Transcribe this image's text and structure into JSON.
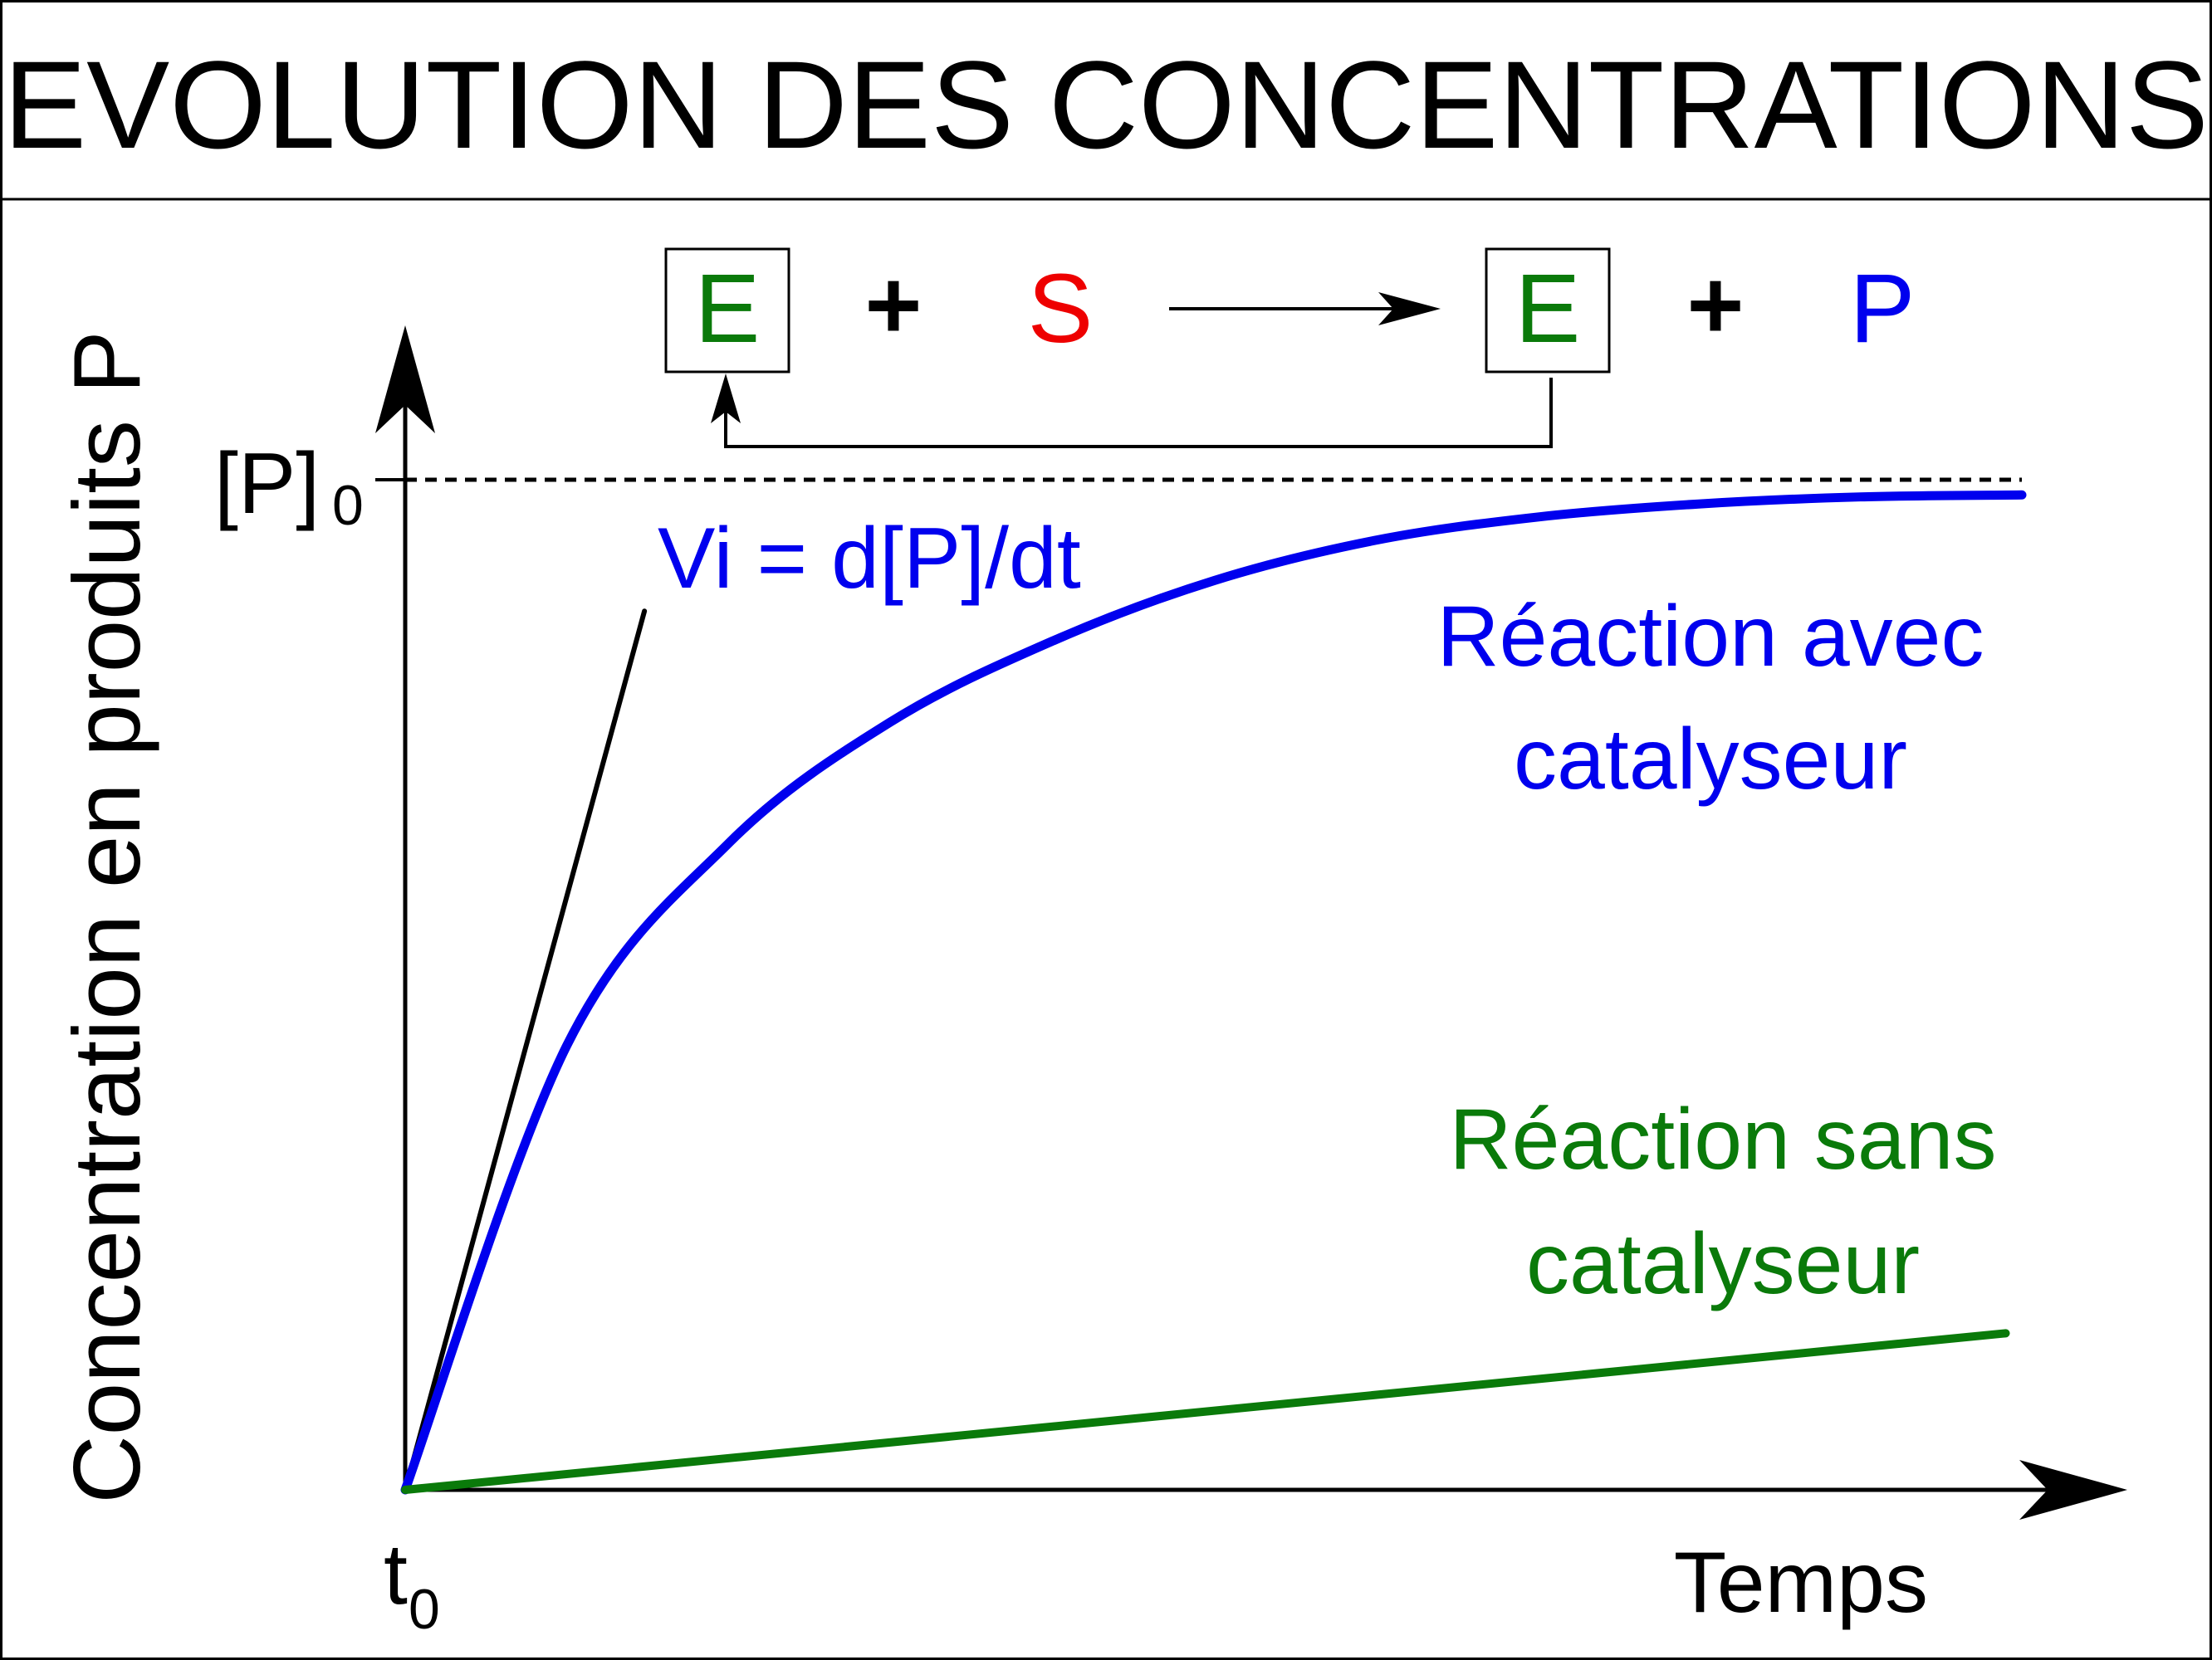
{
  "chart_data": {
    "type": "line",
    "title": "EVOLUTION DES CONCENTRATIONS",
    "xlabel": "Temps",
    "ylabel": "Concentration en produits P",
    "x_tick": {
      "main": "t",
      "sub": "0"
    },
    "y_tick": {
      "main": "[P]",
      "sub": "0"
    },
    "reaction": {
      "enzyme": "E",
      "plus": "+",
      "substrate": "S",
      "product": "P"
    },
    "tangent_label": "Vi = d[P]/dt",
    "series": [
      {
        "name_lines": [
          "Réaction avec",
          "catalyseur"
        ],
        "color": "#0000ee",
        "shape": "saturating",
        "x": [
          0,
          0.1,
          0.2,
          0.3,
          0.4,
          0.5,
          0.6,
          0.7,
          0.8,
          0.9,
          1.0
        ],
        "values": [
          0,
          0.44,
          0.64,
          0.76,
          0.84,
          0.9,
          0.94,
          0.963,
          0.976,
          0.983,
          0.985
        ]
      },
      {
        "name_lines": [
          "Réaction sans",
          "catalyseur"
        ],
        "color": "#0a7a0a",
        "shape": "linear",
        "x": [
          0,
          0.99
        ],
        "values": [
          0,
          0.155
        ]
      }
    ],
    "asymptote": {
      "value": 1.0,
      "style": "dashed"
    },
    "tangent": {
      "x": [
        0,
        0.148
      ],
      "values": [
        0,
        0.87
      ]
    },
    "xlim": [
      0,
      1.0
    ],
    "ylim": [
      0,
      1.0
    ],
    "grid": false,
    "colors": {
      "enzyme": "#0a7a0a",
      "substrate": "#ee0000",
      "product": "#0000ee",
      "axis": "#000000"
    }
  }
}
